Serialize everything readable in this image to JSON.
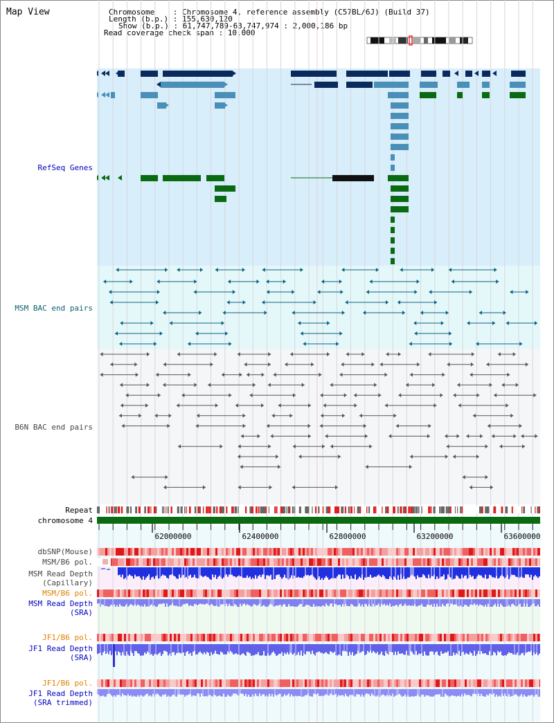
{
  "page_title": "Map View",
  "info": {
    "chromosome_label": "Chromosome    : ",
    "chromosome_value": "Chromosome 4, reference assembly (C57BL/6J) (Build 37)",
    "length_label": "Length (b.p.) : ",
    "length_value": "155,630,120",
    "show_label": "Show (b.p.) : ",
    "show_value": "61,747,789-63,747,974 : 2,000,186 bp",
    "coverage_label": "Read coverage check span : ",
    "coverage_value": "10,000"
  },
  "tracks": {
    "refseq": "RefSeq Genes",
    "msm_bac": "MSM BAC end pairs",
    "b6n_bac": "B6N BAC end pairs",
    "repeat": "Repeat",
    "chromosome": "chromosome 4",
    "dbsnp": "dbSNP(Mouse)",
    "msm_b6_pol_1": "MSM/B6 pol.",
    "msm_read_depth_cap_1": "MSM Read Depth",
    "msm_read_depth_cap_2": "(Capillary)",
    "msm_b6_pol_2": "MSM/B6 pol.",
    "msm_read_depth_sra_1": "MSM Read Depth",
    "msm_read_depth_sra_2": "(SRA)",
    "jf1_b6_pol_1": "JF1/B6 pol.",
    "jf1_read_depth_1": "JF1 Read Depth",
    "jf1_read_depth_2": "(SRA)",
    "jf1_b6_pol_2": "JF1/B6 pol.",
    "jf1_read_depth_tr_1": "JF1 Read Depth",
    "jf1_read_depth_tr_2": "(SRA trimmed)"
  },
  "axis": {
    "start_bp": 61747789,
    "end_bp": 63747974,
    "ticks": [
      "62000000",
      "62400000",
      "62800000",
      "63200000",
      "63600000"
    ]
  },
  "colors": {
    "refseq_bg": "#d8eefa",
    "msm_bg": "#e4f8fa",
    "b6n_bg": "#f4f6f8",
    "gene_dark": "#0a2a5e",
    "gene_mid": "#4a8fb8",
    "gene_green": "#0a6a12",
    "msm_line": "#0a6080",
    "b6n_line": "#555555",
    "label_blue": "#0000c0",
    "label_teal": "#0a6070",
    "label_gray": "#444444",
    "label_orange": "#e08000",
    "chromosome_green": "#0a6a12"
  }
}
